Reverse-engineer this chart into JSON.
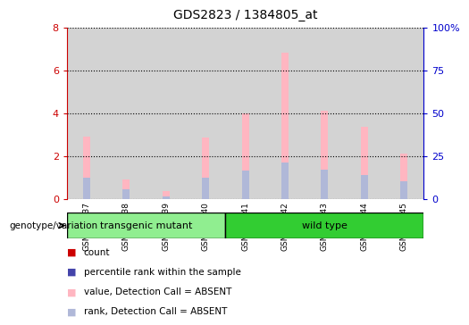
{
  "title": "GDS2823 / 1384805_at",
  "samples": [
    "GSM181537",
    "GSM181538",
    "GSM181539",
    "GSM181540",
    "GSM181541",
    "GSM181542",
    "GSM181543",
    "GSM181544",
    "GSM181545"
  ],
  "ylim_left": [
    0,
    8
  ],
  "ylim_right": [
    0,
    100
  ],
  "yticks_left": [
    0,
    2,
    4,
    6,
    8
  ],
  "ytick_labels_right": [
    "0",
    "25",
    "50",
    "75",
    "100%"
  ],
  "yticks_right": [
    0,
    25,
    50,
    75,
    100
  ],
  "value_absent": [
    2.9,
    0.9,
    0.35,
    2.85,
    4.0,
    6.8,
    4.1,
    3.35,
    2.1
  ],
  "rank_absent": [
    1.0,
    0.45,
    0.1,
    1.0,
    1.3,
    1.7,
    1.35,
    1.1,
    0.8
  ],
  "color_count": "#cc0000",
  "color_rank": "#4444aa",
  "color_value_absent": "#ffb6c1",
  "color_rank_absent": "#b0b8d8",
  "legend_labels": [
    "count",
    "percentile rank within the sample",
    "value, Detection Call = ABSENT",
    "rank, Detection Call = ABSENT"
  ],
  "legend_colors": [
    "#cc0000",
    "#4444aa",
    "#ffb6c1",
    "#b0b8d8"
  ],
  "ylabel_left_color": "#cc0000",
  "ylabel_right_color": "#0000cc",
  "background_sample": "#d3d3d3",
  "group_info": [
    {
      "label": "transgenic mutant",
      "start": 0,
      "end": 3,
      "color": "#90EE90"
    },
    {
      "label": "wild type",
      "start": 4,
      "end": 8,
      "color": "#32CD32"
    }
  ]
}
